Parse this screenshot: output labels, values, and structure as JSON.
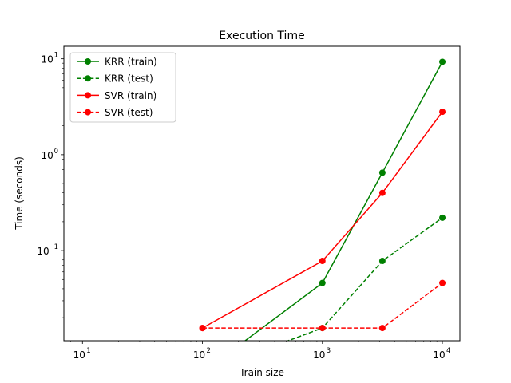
{
  "chart_data": {
    "type": "line",
    "title": "Execution Time",
    "xlabel": "Train size",
    "ylabel": "Time (seconds)",
    "xscale": "log",
    "yscale": "log",
    "xlim": [
      7,
      14000
    ],
    "ylim": [
      0.0115,
      13.5
    ],
    "xticks": [
      {
        "base": "10",
        "exp": "1",
        "value": 10
      },
      {
        "base": "10",
        "exp": "2",
        "value": 100
      },
      {
        "base": "10",
        "exp": "3",
        "value": 1000
      },
      {
        "base": "10",
        "exp": "4",
        "value": 10000
      }
    ],
    "yticks": [
      {
        "base": "10",
        "exp": "1",
        "value": 10
      },
      {
        "base": "10",
        "exp": "0",
        "value": 1
      },
      {
        "base": "10",
        "exp": "−1",
        "value": 0.1
      }
    ],
    "grid": false,
    "legend_position": "top-left",
    "series": [
      {
        "name": "KRR (train)",
        "color": "#008000",
        "linestyle": "solid",
        "marker": "circle",
        "x": [
          100,
          1000,
          3162,
          10000
        ],
        "y": [
          0.0,
          0.046,
          0.65,
          9.3
        ]
      },
      {
        "name": "KRR (test)",
        "color": "#008000",
        "linestyle": "dashed",
        "marker": "circle",
        "x": [
          100,
          1000,
          3162,
          10000
        ],
        "y": [
          0.0,
          0.0156,
          0.078,
          0.22
        ]
      },
      {
        "name": "SVR (train)",
        "color": "#ff0000",
        "linestyle": "solid",
        "marker": "circle",
        "x": [
          100,
          1000,
          3162,
          10000
        ],
        "y": [
          0.0156,
          0.078,
          0.4,
          2.8
        ]
      },
      {
        "name": "SVR (test)",
        "color": "#ff0000",
        "linestyle": "dashed",
        "marker": "circle",
        "x": [
          100,
          1000,
          3162,
          10000
        ],
        "y": [
          0.0156,
          0.0156,
          0.0156,
          0.046
        ]
      }
    ]
  }
}
